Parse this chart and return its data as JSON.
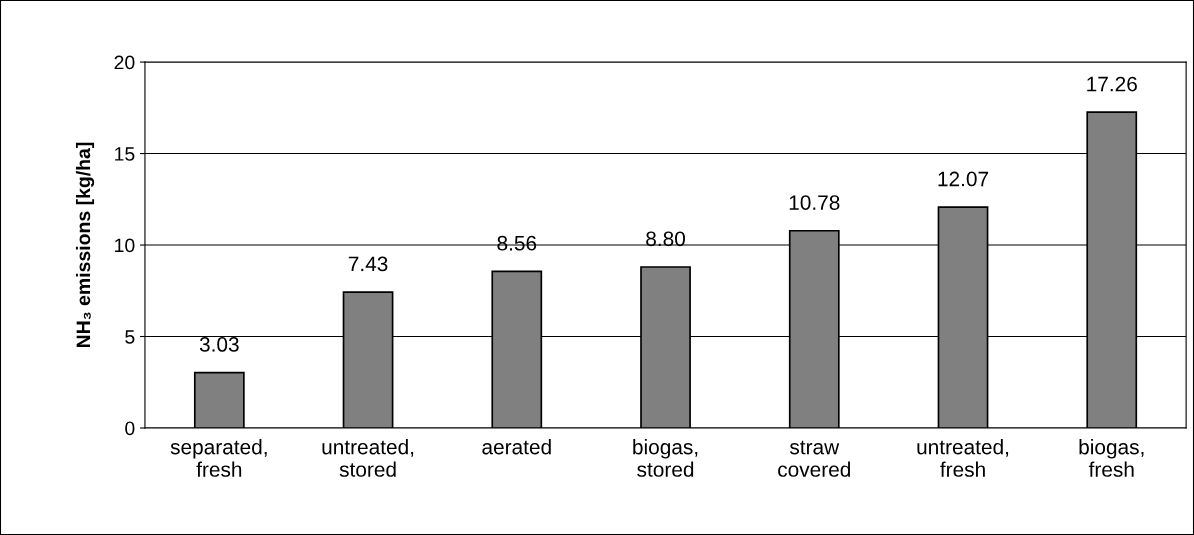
{
  "chart_data": {
    "type": "bar",
    "ylabel": "NH₃ emissions [kg/ha]",
    "categories": [
      "separated,\nfresh",
      "untreated,\nstored",
      "aerated",
      "biogas,\nstored",
      "straw\ncovered",
      "untreated,\nfresh",
      "biogas,\nfresh"
    ],
    "values": [
      3.03,
      7.43,
      8.56,
      8.8,
      10.78,
      12.07,
      17.26
    ],
    "value_labels": [
      "3.03",
      "7.43",
      "8.56",
      "8.80",
      "10.78",
      "12.07",
      "17.26"
    ],
    "color": "#808080",
    "ylim": [
      0,
      20
    ],
    "yticks": [
      0,
      5,
      10,
      15,
      20
    ],
    "grid": "y",
    "legend": false
  }
}
